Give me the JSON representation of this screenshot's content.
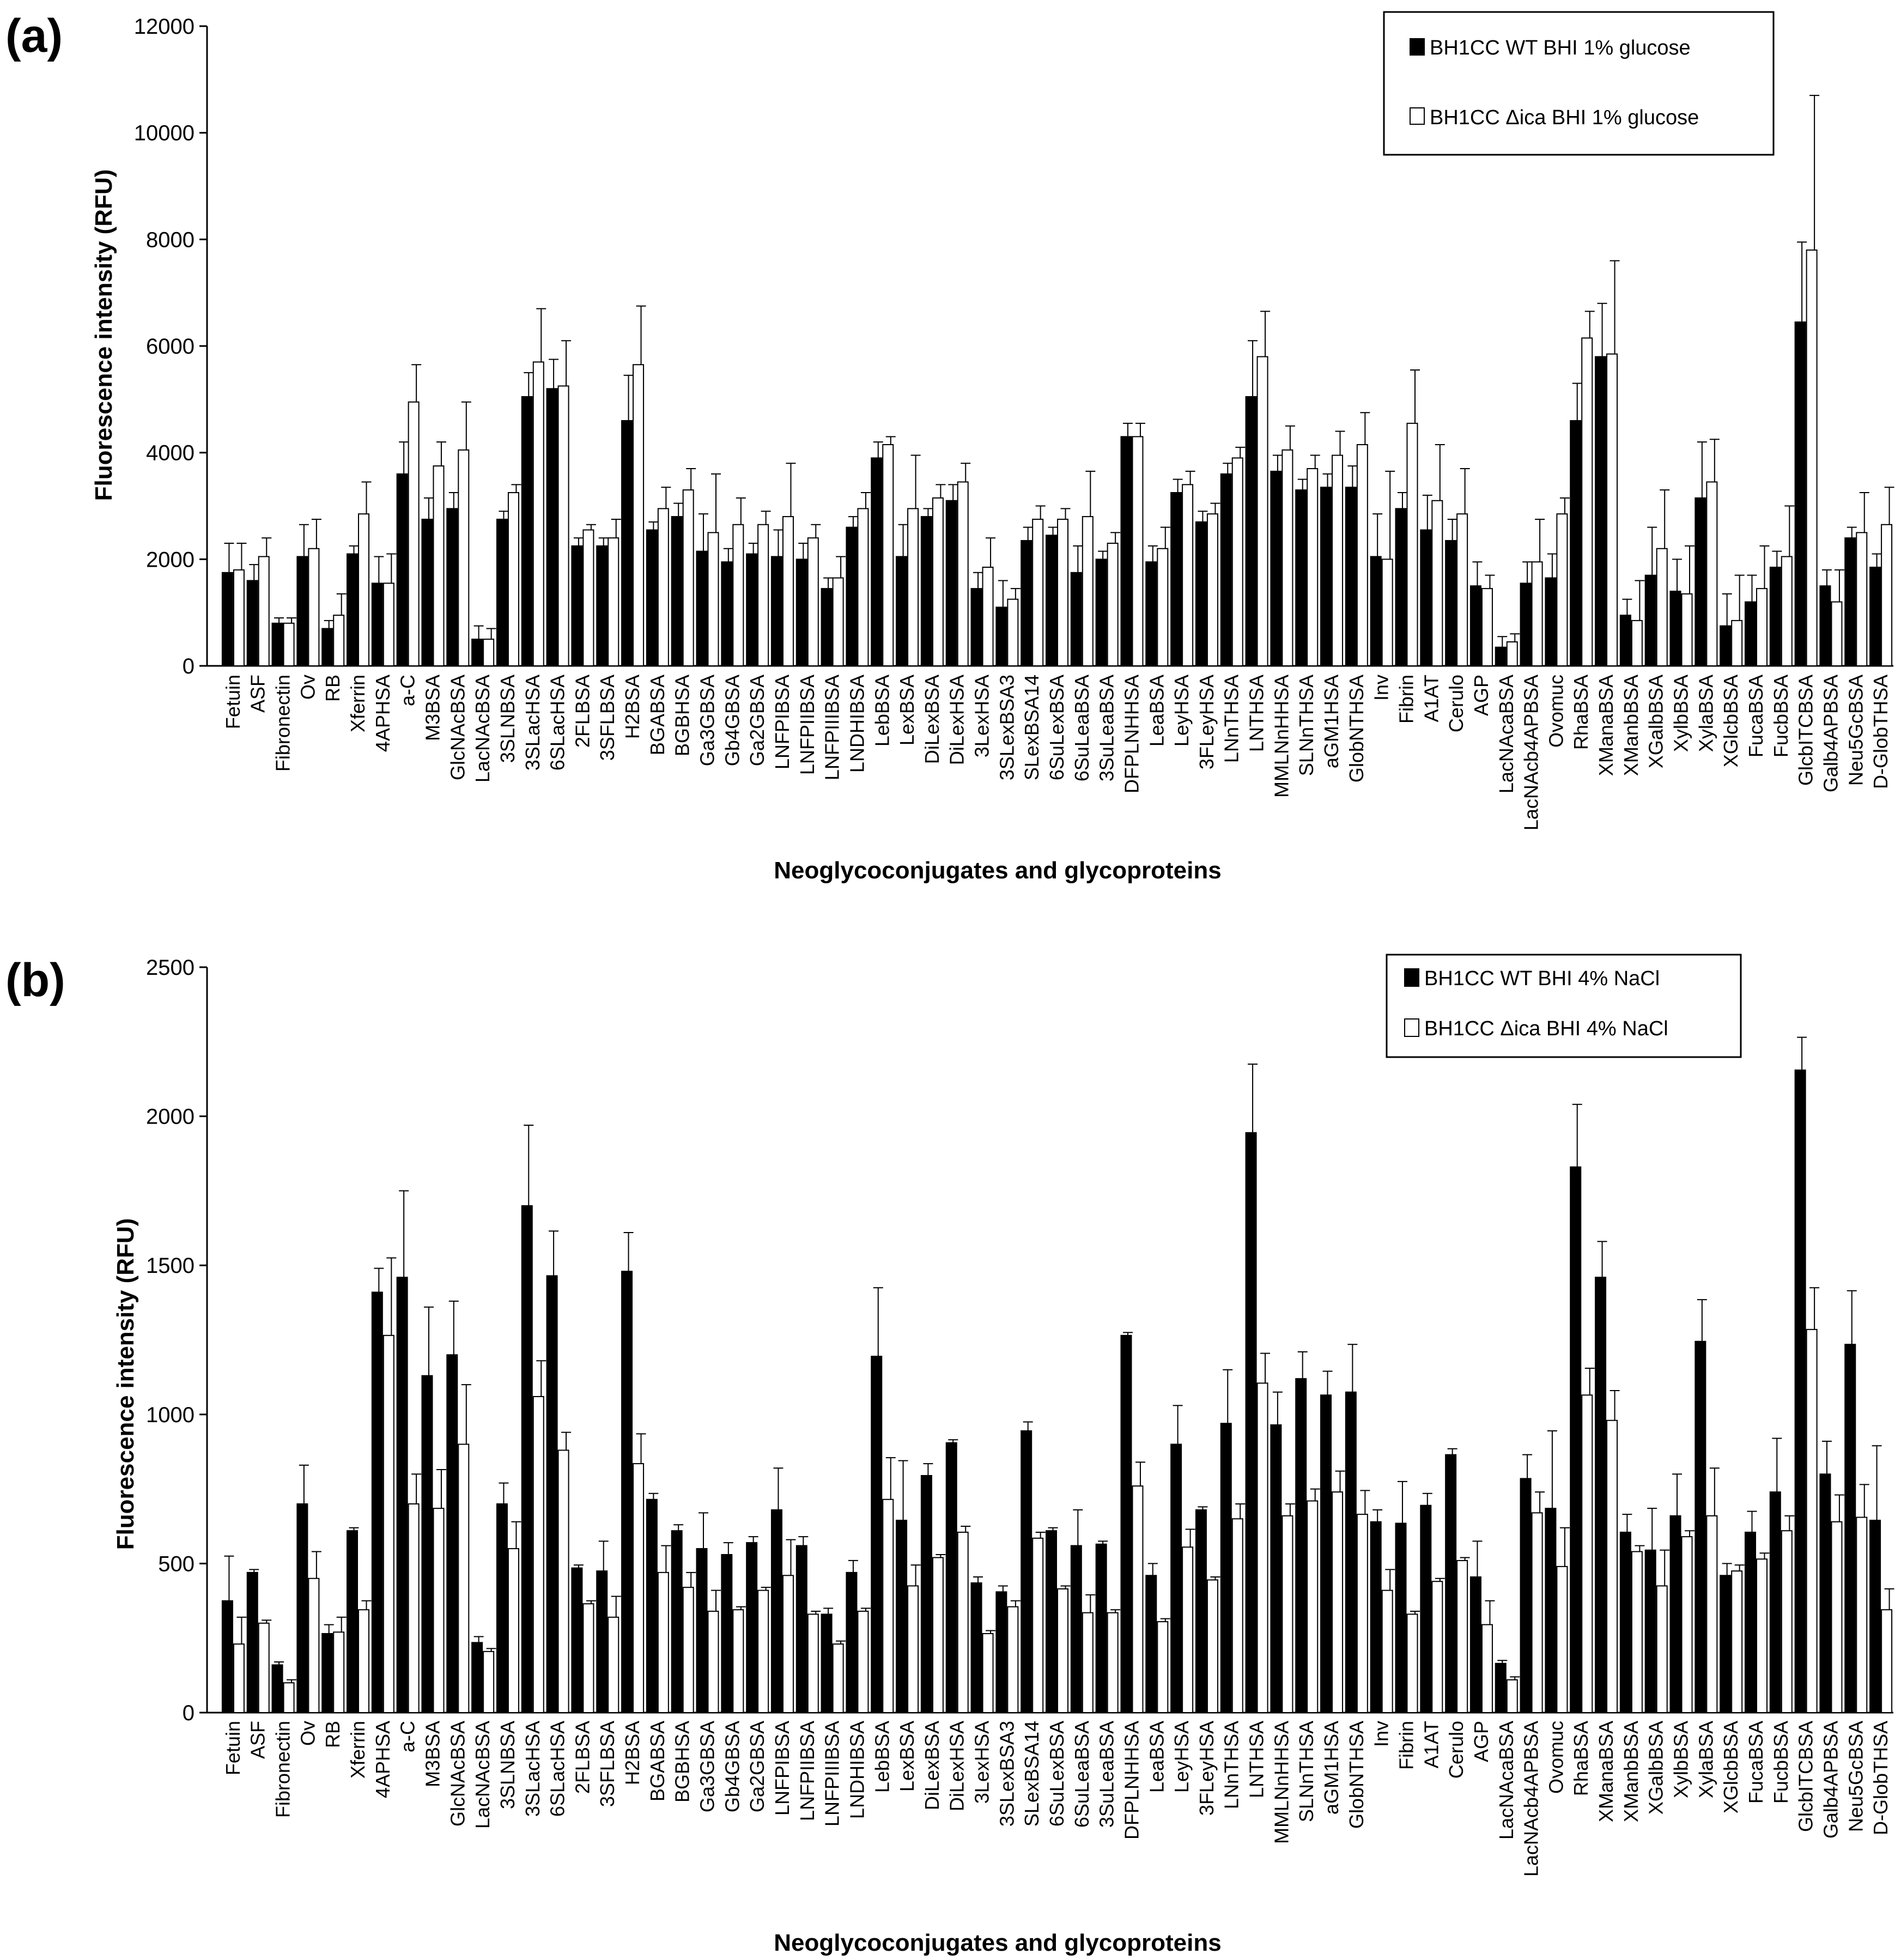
{
  "categories": [
    "Fetuin",
    "ASF",
    "Fibronectin",
    "Ov",
    "RB",
    "Xferrin",
    "4APHSA",
    "a-C",
    "M3BSA",
    "GlcNAcBSA",
    "LacNAcBSA",
    "3SLNBSA",
    "3SLacHSA",
    "6SLacHSA",
    "2FLBSA",
    "3SFLBSA",
    "H2BSA",
    "BGABSA",
    "BGBHSA",
    "Ga3GBSA",
    "Gb4GBSA",
    "Ga2GBSA",
    "LNFPIBSA",
    "LNFPIIBSA",
    "LNFPIIIBSA",
    "LNDHIBSA",
    "LebBSA",
    "LexBSA",
    "DiLexBSA",
    "DiLexHSA",
    "3LexHSA",
    "3SLexBSA3",
    "SLexBSA14",
    "6SuLexBSA",
    "6SuLeaBSA",
    "3SuLeaBSA",
    "DFPLNHHSA",
    "LeaBSA",
    "LeyHSA",
    "3FLeyHSA",
    "LNnTHSA",
    "LNTHSA",
    "MMLNnHHSA",
    "SLNnTHSA",
    "aGM1HSA",
    "GlobNTHSA",
    "Inv",
    "Fibrin",
    "A1AT",
    "Cerulo",
    "AGP",
    "LacNAcaBSA",
    "LacNAcb4APBSA",
    "Ovomuc",
    "RhaBSA",
    "XManaBSA",
    "XManbBSA",
    "XGalbBSA",
    "XylbBSA",
    "XylaBSA",
    "XGlcbBSA",
    "FucaBSA",
    "FucbBSA",
    "GlcbITCBSA",
    "Galb4APBSA",
    "Neu5GcBSA",
    "D-GlobTHSA"
  ],
  "chart_data": [
    {
      "panel_label": "(a)",
      "type": "bar",
      "title": "",
      "xlabel": "Neoglycoconjugates and glycoproteins",
      "ylabel": "Fluorescence intensity (RFU)",
      "ylim": [
        0,
        12000
      ],
      "yticks": [
        0,
        2000,
        4000,
        6000,
        8000,
        10000,
        12000
      ],
      "legend_position": "top-right",
      "series": [
        {
          "name": "BH1CC WT BHI 1% glucose",
          "fill": "#000000",
          "values": [
            1750,
            1600,
            800,
            2050,
            700,
            2100,
            1550,
            3600,
            2750,
            2950,
            500,
            2750,
            5050,
            5200,
            2250,
            2250,
            4600,
            2550,
            2800,
            2150,
            1950,
            2100,
            2050,
            2000,
            1450,
            2600,
            3900,
            2050,
            2800,
            3100,
            1450,
            1100,
            2350,
            2450,
            1750,
            2000,
            4300,
            1950,
            3250,
            2700,
            3600,
            5050,
            3650,
            3300,
            3350,
            3350,
            2050,
            2950,
            2550,
            2350,
            1500,
            350,
            1550,
            1650,
            4600,
            5800,
            950,
            1700,
            1400,
            3150,
            750,
            1200,
            1850,
            6450,
            1500,
            2400,
            1850
          ],
          "errors": [
            550,
            300,
            100,
            600,
            150,
            150,
            500,
            600,
            400,
            300,
            250,
            150,
            450,
            550,
            150,
            150,
            850,
            150,
            250,
            700,
            250,
            200,
            500,
            300,
            200,
            200,
            300,
            600,
            150,
            300,
            300,
            500,
            250,
            150,
            500,
            150,
            250,
            300,
            250,
            200,
            200,
            1050,
            300,
            200,
            250,
            400,
            800,
            300,
            650,
            400,
            450,
            200,
            400,
            450,
            700,
            1000,
            300,
            900,
            600,
            1050,
            600,
            500,
            300,
            1500,
            300,
            200,
            250
          ]
        },
        {
          "name": "BH1CC Δica BHI 1% glucose",
          "fill": "#ffffff",
          "values": [
            1800,
            2050,
            800,
            2200,
            950,
            2850,
            1550,
            4950,
            3750,
            4050,
            500,
            3250,
            5700,
            5250,
            2550,
            2400,
            5650,
            2950,
            3300,
            2500,
            2650,
            2650,
            2800,
            2400,
            1650,
            2950,
            4150,
            2950,
            3150,
            3450,
            1850,
            1250,
            2750,
            2750,
            2800,
            2300,
            4300,
            2200,
            3400,
            2850,
            3900,
            5800,
            4050,
            3700,
            3950,
            4150,
            2000,
            4550,
            3100,
            2850,
            1450,
            450,
            1950,
            2850,
            6150,
            5850,
            850,
            2200,
            1350,
            3450,
            850,
            1450,
            2050,
            7800,
            1200,
            2500,
            2650
          ],
          "errors": [
            500,
            350,
            100,
            550,
            400,
            600,
            550,
            700,
            450,
            900,
            200,
            150,
            1000,
            850,
            100,
            350,
            1100,
            400,
            400,
            1100,
            500,
            250,
            1000,
            250,
            400,
            300,
            150,
            1000,
            250,
            350,
            550,
            200,
            250,
            200,
            850,
            200,
            250,
            400,
            250,
            200,
            200,
            850,
            450,
            250,
            450,
            600,
            1650,
            1000,
            1050,
            850,
            250,
            150,
            800,
            300,
            500,
            1750,
            750,
            1100,
            900,
            800,
            850,
            800,
            950,
            2900,
            600,
            750,
            700
          ]
        }
      ]
    },
    {
      "panel_label": "(b)",
      "type": "bar",
      "title": "",
      "xlabel": "Neoglycoconjugates and glycoproteins",
      "ylabel": "Fluorescence intensity (RFU)",
      "ylim": [
        0,
        2500
      ],
      "yticks": [
        0,
        500,
        1000,
        1500,
        2000,
        2500
      ],
      "legend_position": "top-right",
      "series": [
        {
          "name": "BH1CC WT BHI 4% NaCl",
          "fill": "#000000",
          "values": [
            375,
            470,
            160,
            700,
            265,
            610,
            1410,
            1460,
            1130,
            1200,
            235,
            700,
            1700,
            1465,
            485,
            475,
            1480,
            715,
            610,
            550,
            530,
            570,
            680,
            560,
            330,
            470,
            1195,
            645,
            795,
            905,
            435,
            405,
            945,
            610,
            560,
            565,
            1265,
            460,
            900,
            680,
            970,
            1945,
            965,
            1120,
            1065,
            1075,
            640,
            635,
            695,
            865,
            455,
            165,
            785,
            685,
            1830,
            1460,
            605,
            545,
            660,
            1245,
            460,
            605,
            740,
            2155,
            800,
            1235,
            645
          ],
          "errors": [
            150,
            10,
            10,
            130,
            30,
            10,
            80,
            290,
            230,
            180,
            20,
            70,
            270,
            150,
            10,
            100,
            130,
            20,
            20,
            120,
            40,
            20,
            140,
            30,
            20,
            40,
            230,
            200,
            40,
            10,
            20,
            20,
            30,
            10,
            120,
            10,
            10,
            40,
            130,
            10,
            180,
            230,
            110,
            90,
            80,
            160,
            40,
            140,
            40,
            20,
            120,
            10,
            80,
            260,
            210,
            120,
            60,
            140,
            140,
            140,
            40,
            70,
            180,
            110,
            110,
            180,
            250
          ]
        },
        {
          "name": "BH1CC Δica BHI 4% NaCl",
          "fill": "#ffffff",
          "values": [
            230,
            300,
            100,
            450,
            270,
            345,
            1265,
            700,
            685,
            900,
            205,
            550,
            1060,
            880,
            365,
            320,
            835,
            470,
            420,
            340,
            345,
            410,
            460,
            330,
            230,
            340,
            715,
            425,
            520,
            605,
            265,
            355,
            585,
            415,
            335,
            335,
            760,
            305,
            555,
            445,
            650,
            1105,
            660,
            710,
            740,
            665,
            410,
            330,
            440,
            510,
            295,
            110,
            670,
            490,
            1065,
            980,
            540,
            425,
            590,
            660,
            475,
            515,
            610,
            1285,
            640,
            655,
            345
          ],
          "errors": [
            90,
            10,
            10,
            90,
            50,
            30,
            260,
            100,
            130,
            200,
            10,
            90,
            120,
            60,
            10,
            70,
            100,
            90,
            50,
            70,
            10,
            10,
            120,
            10,
            10,
            10,
            140,
            70,
            10,
            20,
            10,
            20,
            20,
            10,
            60,
            10,
            80,
            10,
            60,
            10,
            50,
            100,
            40,
            40,
            70,
            80,
            70,
            10,
            10,
            10,
            80,
            10,
            70,
            130,
            90,
            100,
            20,
            120,
            20,
            160,
            20,
            20,
            50,
            140,
            90,
            110,
            70
          ]
        }
      ]
    }
  ]
}
